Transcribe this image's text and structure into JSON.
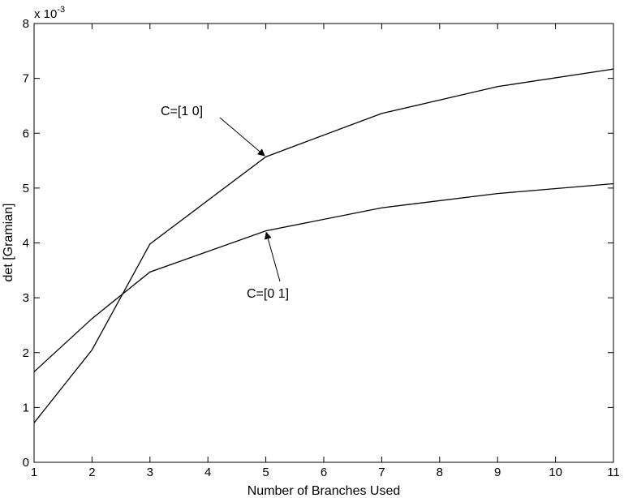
{
  "chart_data": {
    "type": "line",
    "title": "",
    "xlabel": "Number of Branches Used",
    "ylabel": "det [Gramian]",
    "xlim": [
      1,
      11
    ],
    "ylim": [
      0,
      8
    ],
    "y_scale_label": "x 10",
    "y_scale_exponent": "-3",
    "grid": false,
    "x_ticks": [
      "1",
      "2",
      "3",
      "4",
      "5",
      "6",
      "7",
      "8",
      "9",
      "10",
      "11"
    ],
    "y_ticks": [
      "0",
      "1",
      "2",
      "3",
      "4",
      "5",
      "6",
      "7",
      "8"
    ],
    "series": [
      {
        "name": "C=[1 0]",
        "x": [
          1,
          2,
          3,
          5,
          7,
          9,
          11
        ],
        "values": [
          0.72,
          2.05,
          3.98,
          5.57,
          6.36,
          6.85,
          7.17
        ]
      },
      {
        "name": "C=[0 1]",
        "x": [
          1,
          2,
          3,
          5,
          7,
          9,
          11
        ],
        "values": [
          1.65,
          2.62,
          3.47,
          4.22,
          4.64,
          4.9,
          5.08
        ]
      }
    ],
    "annotations": [
      {
        "text": "C=[1 0]",
        "series": "C=[1 0]",
        "point_x": 5,
        "point_y": 5.57
      },
      {
        "text": "C=[0 1]",
        "series": "C=[0 1]",
        "point_x": 5,
        "point_y": 4.22
      }
    ]
  }
}
